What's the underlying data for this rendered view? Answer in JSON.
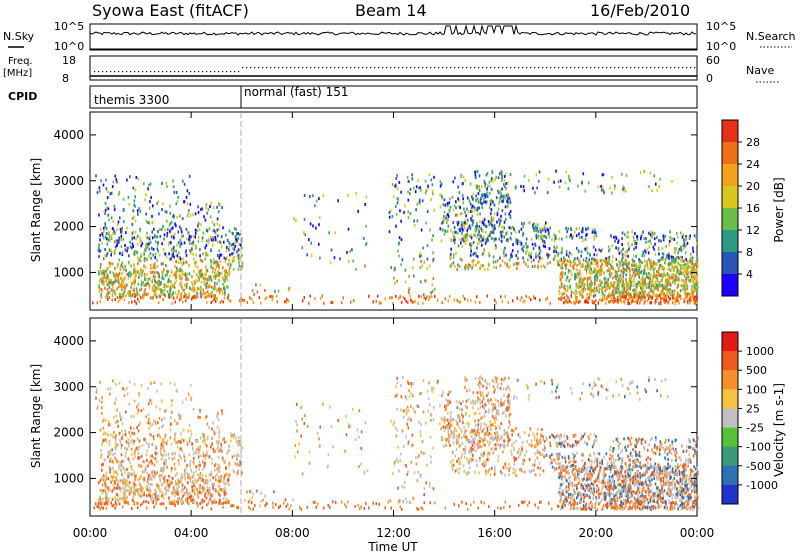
{
  "header": {
    "station": "Syowa East (fitACF)",
    "beam": "Beam 14",
    "date": "16/Feb/2010"
  },
  "nsky_panel": {
    "left_label": "N.Sky",
    "right_label": "N.Search",
    "left_ticks": [
      "10^5",
      "10^0"
    ],
    "right_ticks": [
      "10^5",
      "10^0"
    ]
  },
  "freq_panel": {
    "left_label_1": "Freq.",
    "left_label_2": "[MHz]",
    "right_label": "Nave",
    "left_ticks": [
      "18",
      "8"
    ],
    "right_ticks": [
      "60",
      "0"
    ]
  },
  "cpid_panel": {
    "label": "CPID",
    "modes": [
      {
        "name": "themis 3300",
        "start_hour": 0
      },
      {
        "name": "normal (fast) 151",
        "start_hour": 6
      }
    ]
  },
  "chart_data": [
    {
      "type": "heatmap",
      "title": "Power",
      "ylabel": "Slant Range [km]",
      "xlabel": "Time UT",
      "ylim": [
        180,
        4500
      ],
      "xlim": [
        0,
        24
      ],
      "yticks": [
        1000,
        2000,
        3000,
        4000
      ],
      "xticks": [
        "00:00",
        "04:00",
        "08:00",
        "12:00",
        "16:00",
        "20:00",
        "00:00"
      ],
      "colorbar": {
        "label": "Power [dB]",
        "ticks": [
          "4",
          "8",
          "12",
          "16",
          "20",
          "24",
          "28"
        ],
        "colors": [
          "#1e00ff",
          "#2955b4",
          "#2e9a83",
          "#6bbd4a",
          "#d8c81c",
          "#f2a21c",
          "#ee6f17",
          "#e6301a"
        ]
      }
    },
    {
      "type": "heatmap",
      "title": "Velocity",
      "ylabel": "Slant Range [km]",
      "xlabel": "Time UT",
      "ylim": [
        180,
        4500
      ],
      "xlim": [
        0,
        24
      ],
      "yticks": [
        1000,
        2000,
        3000,
        4000
      ],
      "xticks": [
        "00:00",
        "04:00",
        "08:00",
        "12:00",
        "16:00",
        "20:00",
        "00:00"
      ],
      "colorbar": {
        "label": "Velocity [m s-1]",
        "ticks": [
          "1000",
          "500",
          "100",
          "25",
          "-25",
          "-100",
          "-500",
          "-1000"
        ],
        "colors": [
          "#2233cc",
          "#2f6fb4",
          "#3a9a7a",
          "#56c23c",
          "#c0c0c0",
          "#f5c242",
          "#f4902b",
          "#ef5a1e",
          "#e31a1a"
        ]
      }
    }
  ],
  "x_axis_title": "Time UT"
}
